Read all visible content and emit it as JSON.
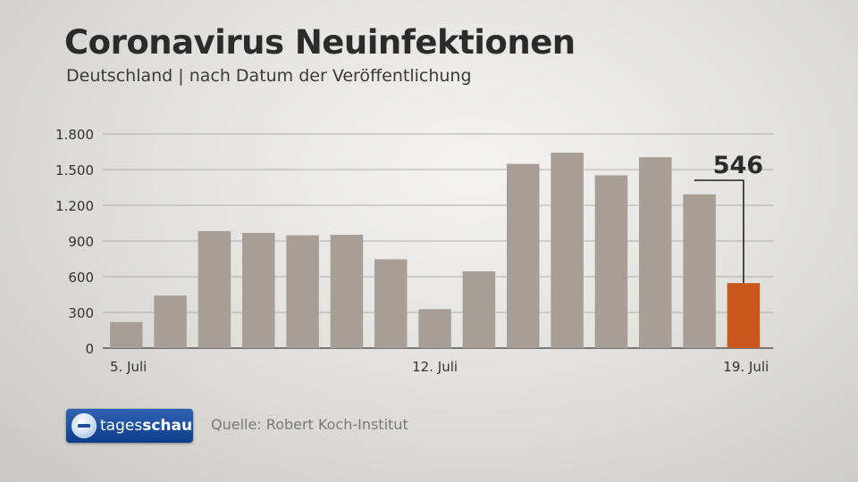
{
  "header": {
    "title": "Coronavirus Neuinfektionen",
    "subtitle": "Deutschland | nach Datum der Veröffentlichung"
  },
  "footer": {
    "logo_text_light": "tages",
    "logo_text_bold": "schau",
    "source": "Quelle: Robert Koch-Institut"
  },
  "colors": {
    "bar": "#a89e95",
    "highlight": "#c9561d",
    "text": "#2b2b2b",
    "grid": "#9a9a9a"
  },
  "chart_data": {
    "type": "bar",
    "title": "Coronavirus Neuinfektionen",
    "subtitle": "Deutschland | nach Datum der Veröffentlichung",
    "categories": [
      "5. Juli",
      "",
      "",
      "",
      "",
      "",
      "",
      "12. Juli",
      "",
      "",
      "",
      "",
      "",
      "",
      "19. Juli"
    ],
    "values": [
      219,
      442,
      983,
      968,
      948,
      952,
      746,
      327,
      645,
      1548,
      1642,
      1452,
      1604,
      1292,
      546
    ],
    "highlight_index": 14,
    "highlight_label": "546",
    "yticks": [
      0,
      300,
      600,
      900,
      1200,
      1500,
      1800
    ],
    "ytick_labels": [
      "0",
      "300",
      "600",
      "900",
      "1.200",
      "1.500",
      "1.800"
    ],
    "xtick_labels": [
      "5. Juli",
      "12. Juli",
      "19. Juli"
    ],
    "ylim": [
      0,
      1800
    ],
    "grid": true
  }
}
